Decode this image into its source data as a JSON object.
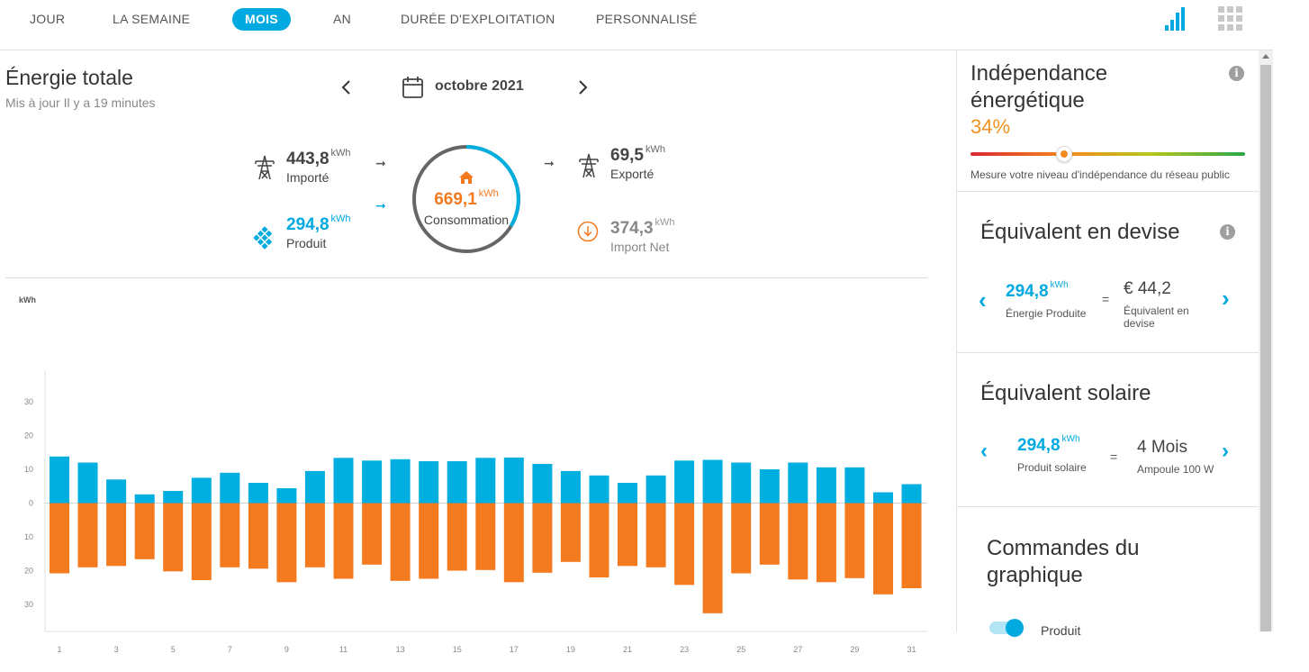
{
  "tabs": [
    {
      "label": "JOUR",
      "active": false
    },
    {
      "label": "LA SEMAINE",
      "active": false
    },
    {
      "label": "MOIS",
      "active": true
    },
    {
      "label": "AN",
      "active": false
    },
    {
      "label": "DURÉE D'EXPLOITATION",
      "active": false
    },
    {
      "label": "PERSONNALISÉ",
      "active": false
    }
  ],
  "header": {
    "title": "Énergie totale",
    "subtitle": "Mis à jour Il y a 19 minutes",
    "period": "octobre 2021"
  },
  "flow": {
    "imported": {
      "value": "443,8",
      "unit": "kWh",
      "label": "Importé"
    },
    "produced": {
      "value": "294,8",
      "unit": "kWh",
      "label": "Produit"
    },
    "consumption": {
      "value": "669,1",
      "unit": "kWh",
      "label": "Consommation"
    },
    "exported": {
      "value": "69,5",
      "unit": "kWh",
      "label": "Exporté"
    },
    "net_import": {
      "value": "374,3",
      "unit": "kWh",
      "label": "Import Net"
    }
  },
  "chart_data": {
    "type": "bar",
    "ylabel": "kWh",
    "ylim": [
      -38,
      38
    ],
    "y_ticks": [
      30,
      20,
      10,
      0,
      -10,
      -20,
      -30
    ],
    "y_tick_labels": [
      "30",
      "20",
      "10",
      "0",
      "10",
      "20",
      "30"
    ],
    "x_tick_labels": [
      "1",
      "3",
      "5",
      "7",
      "9",
      "11",
      "13",
      "15",
      "17",
      "19",
      "21",
      "23",
      "25",
      "27",
      "29",
      "31"
    ],
    "categories": [
      "1",
      "2",
      "3",
      "4",
      "5",
      "6",
      "7",
      "8",
      "9",
      "10",
      "11",
      "12",
      "13",
      "14",
      "15",
      "16",
      "17",
      "18",
      "19",
      "20",
      "21",
      "22",
      "23",
      "24",
      "25",
      "26",
      "27",
      "28",
      "29",
      "30",
      "31"
    ],
    "series": [
      {
        "color": "#00aee0",
        "values": [
          13.8,
          12.0,
          7.0,
          2.6,
          3.6,
          7.5,
          9.0,
          6.0,
          4.4,
          9.5,
          13.4,
          12.6,
          13.0,
          12.4,
          12.4,
          13.4,
          13.5,
          11.6,
          9.5,
          8.2,
          6.0,
          8.2,
          12.6,
          12.8,
          12.0,
          10.0,
          12.0,
          10.6,
          10.6,
          3.2,
          5.6
        ]
      },
      {
        "color": "#f47a20",
        "values": [
          -20.8,
          -19.0,
          -18.6,
          -16.6,
          -20.2,
          -22.8,
          -19.0,
          -19.4,
          -23.4,
          -19.0,
          -22.4,
          -18.2,
          -23.0,
          -22.4,
          -20.0,
          -19.8,
          -23.4,
          -20.6,
          -17.4,
          -22.0,
          -18.6,
          -19.0,
          -24.2,
          -32.6,
          -20.8,
          -18.2,
          -22.6,
          -23.4,
          -22.2,
          -27.0,
          -25.2
        ]
      }
    ]
  },
  "side": {
    "independence": {
      "title": "Indépendance énergétique",
      "value": "34%",
      "fraction": 0.34,
      "caption": "Mesure votre niveau d'indépendance du réseau public"
    },
    "currency": {
      "title": "Équivalent en devise",
      "energy_value": "294,8",
      "energy_unit": "kWh",
      "energy_label": "Énergie Produite",
      "equals": "=",
      "money_value": "€ 44,2",
      "money_label": "Équivalent en devise"
    },
    "solar": {
      "title": "Équivalent solaire",
      "energy_value": "294,8",
      "energy_unit": "kWh",
      "energy_label": "Produit solaire",
      "equals": "=",
      "months_value": "4 Mois",
      "months_label": "Ampoule 100 W"
    },
    "controls": {
      "title": "Commandes du graphique",
      "toggle_label": "Produit"
    }
  }
}
